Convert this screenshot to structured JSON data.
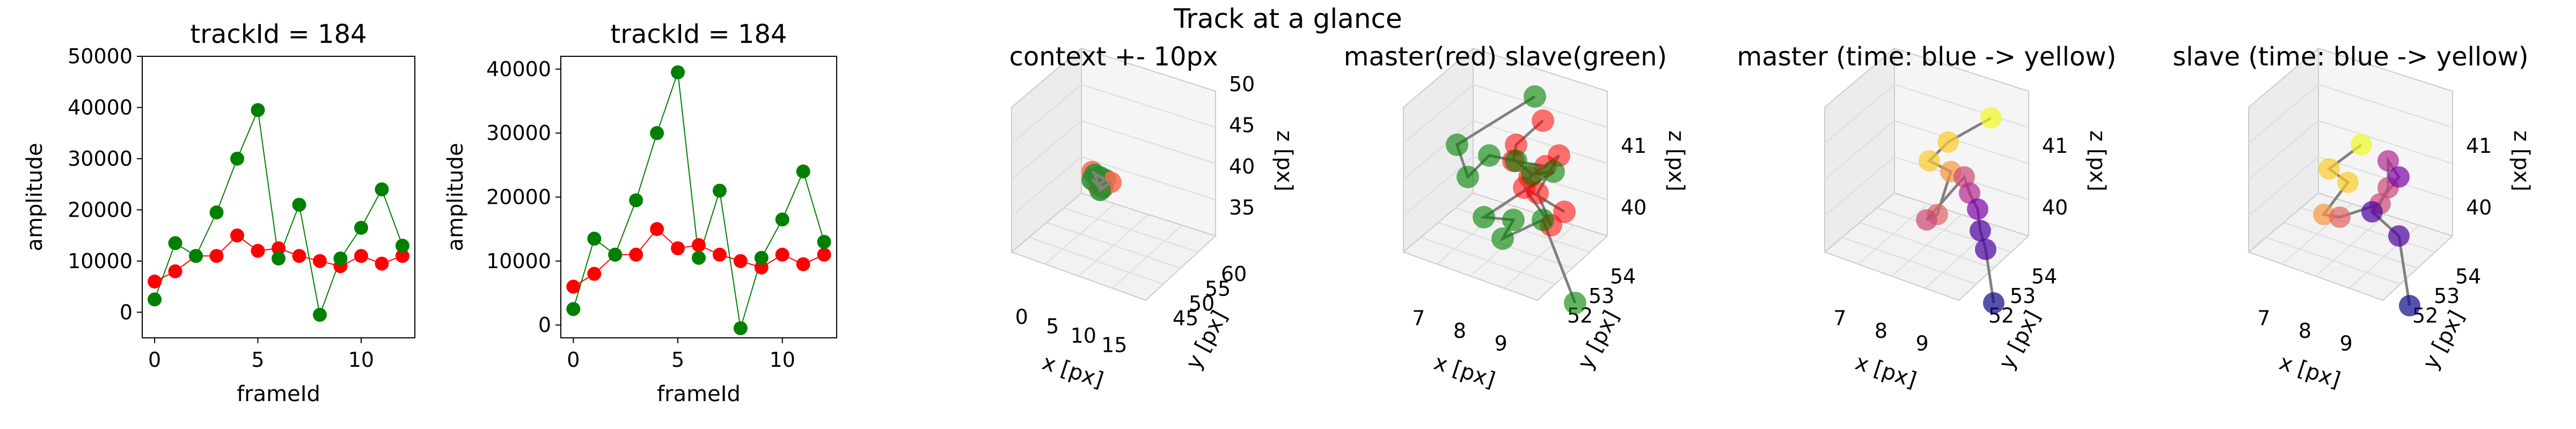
{
  "figure": {
    "suptitle": "Track at a glance"
  },
  "chart_data": [
    {
      "type": "line",
      "title": "trackId = 184",
      "xlabel": "frameId",
      "ylabel": "amplitude",
      "xlim": [
        -0.6,
        12.6
      ],
      "ylim": [
        -5000,
        50000
      ],
      "xticks": [
        0,
        5,
        10
      ],
      "yticks": [
        0,
        10000,
        20000,
        30000,
        40000,
        50000
      ],
      "series": [
        {
          "color": "#ff0000",
          "marker": "o",
          "x": [
            0,
            1,
            2,
            3,
            4,
            5,
            6,
            7,
            8,
            9,
            10,
            11,
            12
          ],
          "values": [
            6000,
            8000,
            11000,
            11000,
            15000,
            12000,
            12500,
            11000,
            10000,
            9000,
            11000,
            9500,
            11000
          ]
        },
        {
          "color": "#008000",
          "marker": "o",
          "x": [
            0,
            1,
            2,
            3,
            4,
            5,
            6,
            7,
            8,
            9,
            10,
            11,
            12
          ],
          "values": [
            2500,
            13500,
            11000,
            19500,
            30000,
            39500,
            10500,
            21000,
            -500,
            10500,
            16500,
            24000,
            13000
          ]
        }
      ]
    },
    {
      "type": "line",
      "title": "trackId = 184",
      "xlabel": "frameId",
      "ylabel": "amplitude",
      "xlim": [
        -0.6,
        12.6
      ],
      "ylim": [
        -2000,
        42000
      ],
      "xticks": [
        0,
        5,
        10
      ],
      "yticks": [
        0,
        10000,
        20000,
        30000,
        40000
      ],
      "series": [
        {
          "color": "#ff0000",
          "marker": "o",
          "x": [
            0,
            1,
            2,
            3,
            4,
            5,
            6,
            7,
            8,
            9,
            10,
            11,
            12
          ],
          "values": [
            6000,
            8000,
            11000,
            11000,
            15000,
            12000,
            12500,
            11000,
            10000,
            9000,
            11000,
            9500,
            11000
          ]
        },
        {
          "color": "#008000",
          "marker": "o",
          "x": [
            0,
            1,
            2,
            3,
            4,
            5,
            6,
            7,
            8,
            9,
            10,
            11,
            12
          ],
          "values": [
            2500,
            13500,
            11000,
            19500,
            30000,
            39500,
            10500,
            21000,
            -500,
            10500,
            16500,
            24000,
            13000
          ]
        }
      ]
    },
    {
      "type": "scatter",
      "projection": "3d",
      "title": "context +- 10px",
      "xlabel": "x [px]",
      "ylabel": "y [px]",
      "zlabel": "z [px]",
      "xticks": [
        "0",
        "5",
        "10",
        "15"
      ],
      "yticks": [
        "45",
        "50",
        "55",
        "60"
      ],
      "zticks": [
        "35",
        "40",
        "45",
        "50"
      ],
      "series": [
        {
          "color": "#ff0000",
          "note": "master cluster"
        },
        {
          "color": "#008000",
          "note": "slave cluster"
        }
      ]
    },
    {
      "type": "scatter",
      "projection": "3d",
      "title": "master(red) slave(green)",
      "xlabel": "x [px]",
      "ylabel": "y [px]",
      "zlabel": "z [px]",
      "xticks": [
        "7",
        "8",
        "9"
      ],
      "yticks": [
        "52",
        "53",
        "54"
      ],
      "zticks": [
        "40",
        "41"
      ],
      "series": [
        {
          "color": "#ff0000"
        },
        {
          "color": "#008000"
        }
      ]
    },
    {
      "type": "scatter",
      "projection": "3d",
      "title": "master (time: blue -> yellow)",
      "xlabel": "x [px]",
      "ylabel": "y [px]",
      "zlabel": "z [px]",
      "xticks": [
        "7",
        "8",
        "9"
      ],
      "yticks": [
        "52",
        "53",
        "54"
      ],
      "zticks": [
        "40",
        "41"
      ],
      "colormap": [
        "#0d0887",
        "#7e03a8",
        "#cc4778",
        "#f89540",
        "#f0f921"
      ]
    },
    {
      "type": "scatter",
      "projection": "3d",
      "title": "slave (time: blue -> yellow)",
      "xlabel": "x [px]",
      "ylabel": "y [px]",
      "zlabel": "z [px]",
      "xticks": [
        "7",
        "8",
        "9"
      ],
      "yticks": [
        "52",
        "53",
        "54"
      ],
      "zticks": [
        "40",
        "41"
      ],
      "colormap": [
        "#0d0887",
        "#7e03a8",
        "#cc4778",
        "#f89540",
        "#f0f921"
      ]
    }
  ]
}
